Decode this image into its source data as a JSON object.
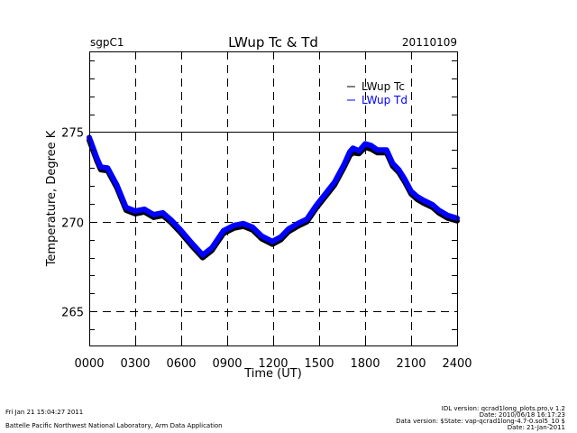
{
  "header": {
    "site": "sgpC1",
    "title": "LWup Tc & Td",
    "date": "20110109"
  },
  "footer": {
    "left_line1": "Fri Jan 21 15:04:27 2011",
    "left_line2": "Battelle Pacific Northwest National Laboratory, Arm Data Application",
    "right_line1": "IDL version: qcrad1long_plots.pro,v 1.2",
    "right_line2": "Date: 2010/06/18 16:17:23",
    "right_line3": "Data version: $State: vap-qcrad1long-4.7-0.sol5_10 $",
    "right_line4": "Date: 21-Jan-2011"
  },
  "colors": {
    "tc": "#000000",
    "td": "#0000ff"
  },
  "chart_data": {
    "type": "line",
    "title": "LWup Tc & Td",
    "xlabel": "Time (UT)",
    "ylabel": "Temperature, Degree K",
    "xlim": [
      0,
      24
    ],
    "ylim": [
      263.1,
      279.5
    ],
    "x_ticks": [
      0,
      3,
      6,
      9,
      12,
      15,
      18,
      21,
      24
    ],
    "x_tick_labels": [
      "0000",
      "0300",
      "0600",
      "0900",
      "1200",
      "1500",
      "1800",
      "2100",
      "2400"
    ],
    "y_ticks": [
      265,
      270,
      275
    ],
    "y_tick_labels": [
      "265",
      "270",
      "275"
    ],
    "y_minor_step": 1,
    "grid": "dashed at major ticks",
    "legend": {
      "position": "top-right",
      "entries": [
        "LWup Tc",
        "LWup Td"
      ]
    },
    "series": [
      {
        "name": "LWup Tc",
        "x": [
          0.0,
          0.5,
          0.75,
          1.2,
          1.8,
          2.4,
          3.0,
          3.6,
          4.2,
          4.8,
          5.35,
          5.95,
          6.7,
          7.4,
          8.0,
          8.75,
          9.45,
          10.05,
          10.65,
          11.25,
          11.95,
          12.5,
          13.0,
          13.6,
          14.2,
          14.8,
          15.4,
          16.0,
          16.6,
          17.0,
          17.2,
          17.6,
          18.0,
          18.4,
          18.8,
          19.4,
          19.8,
          20.2,
          20.6,
          21.0,
          21.4,
          21.8,
          22.4,
          22.8,
          23.4,
          24.0
        ],
        "values": [
          274.55,
          273.4,
          272.9,
          272.85,
          271.9,
          270.65,
          270.45,
          270.55,
          270.25,
          270.35,
          269.95,
          269.4,
          268.65,
          268.0,
          268.4,
          269.35,
          269.65,
          269.75,
          269.55,
          269.05,
          268.75,
          269.0,
          269.45,
          269.75,
          270.0,
          270.75,
          271.4,
          272.05,
          273.0,
          273.7,
          273.85,
          273.8,
          274.15,
          274.05,
          273.85,
          273.85,
          273.1,
          272.75,
          272.2,
          271.55,
          271.25,
          271.05,
          270.8,
          270.5,
          270.2,
          270.05
        ]
      },
      {
        "name": "LWup Td",
        "x": [
          0.0,
          0.5,
          0.75,
          1.2,
          1.8,
          2.4,
          3.0,
          3.6,
          4.2,
          4.8,
          5.35,
          5.95,
          6.7,
          7.4,
          8.0,
          8.75,
          9.45,
          10.05,
          10.65,
          11.25,
          11.95,
          12.5,
          13.0,
          13.6,
          14.2,
          14.8,
          15.4,
          16.0,
          16.6,
          17.0,
          17.2,
          17.6,
          18.0,
          18.4,
          18.8,
          19.4,
          19.8,
          20.2,
          20.6,
          21.0,
          21.4,
          21.8,
          22.4,
          22.8,
          23.4,
          24.0
        ],
        "values": [
          274.7,
          273.55,
          273.05,
          273.0,
          272.05,
          270.8,
          270.6,
          270.7,
          270.4,
          270.5,
          270.1,
          269.55,
          268.8,
          268.15,
          268.55,
          269.5,
          269.8,
          269.9,
          269.7,
          269.2,
          268.9,
          269.15,
          269.6,
          269.9,
          270.15,
          270.9,
          271.55,
          272.2,
          273.15,
          273.9,
          274.1,
          273.95,
          274.35,
          274.25,
          274.0,
          274.0,
          273.25,
          272.9,
          272.35,
          271.7,
          271.4,
          271.2,
          270.95,
          270.65,
          270.35,
          270.2
        ]
      }
    ]
  }
}
